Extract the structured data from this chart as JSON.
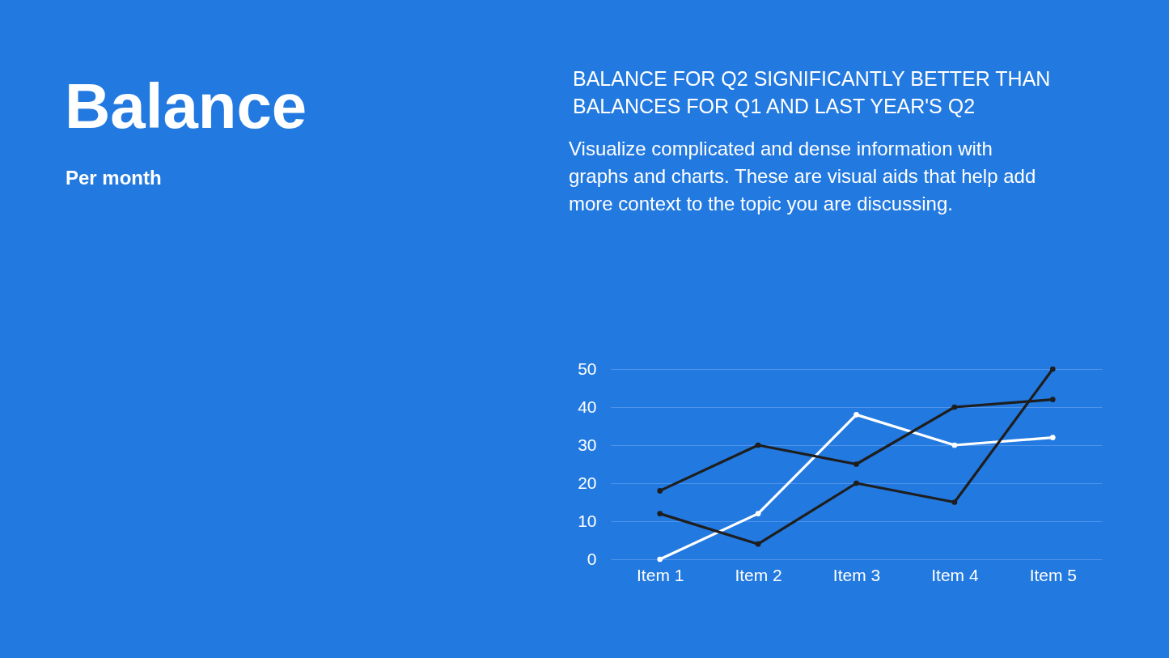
{
  "chart_data": {
    "type": "line",
    "title": "Balance",
    "subtitle": "Per month",
    "annotations": [
      "BALANCE FOR Q2 SIGNIFICANTLY BETTER THAN BALANCES FOR Q1 AND LAST YEAR'S Q2",
      "Visualize complicated and dense information with graphs and charts. These are visual aids that help add more context to the topic you are discussing."
    ],
    "categories": [
      "Item 1",
      "Item 2",
      "Item 3",
      "Item 4",
      "Item 5"
    ],
    "series": [
      {
        "color": "#ffffff",
        "values": [
          0,
          12,
          38,
          30,
          32
        ]
      },
      {
        "color": "#1e1e1e",
        "values": [
          18,
          30,
          25,
          40,
          42
        ]
      },
      {
        "color": "#1e1e1e",
        "values": [
          12,
          4,
          20,
          15,
          50
        ]
      }
    ],
    "ylim": [
      0,
      50
    ],
    "yticks": [
      0,
      10,
      20,
      30,
      40,
      50
    ],
    "grid": "y",
    "marker": "circle",
    "line_style": "solid"
  }
}
